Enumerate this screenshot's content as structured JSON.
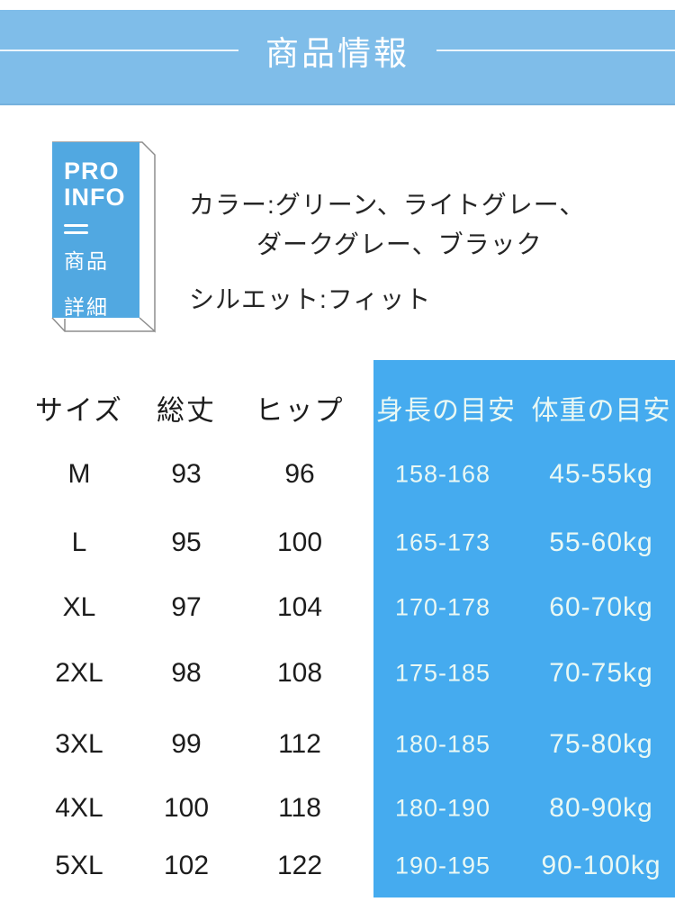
{
  "header": {
    "title": "商品情報"
  },
  "badge": {
    "pro": "PRO",
    "info": "INFO",
    "icon": "equals-lines-icon",
    "word1": "商品",
    "word2": "詳細"
  },
  "product_info": {
    "color_line1": "カラー:グリーン、ライトグレー、",
    "color_line2": "ダークグレー、ブラック",
    "silhouette": "シルエット:フィット"
  },
  "size_table": {
    "columns": [
      "サイズ",
      "総丈",
      "ヒップ",
      "身長の目安",
      "体重の目安"
    ],
    "rows": [
      [
        "M",
        "93",
        "96",
        "158-168",
        "45-55kg"
      ],
      [
        "L",
        "95",
        "100",
        "165-173",
        "55-60kg"
      ],
      [
        "XL",
        "97",
        "104",
        "170-178",
        "60-70kg"
      ],
      [
        "2XL",
        "98",
        "108",
        "175-185",
        "70-75kg"
      ],
      [
        "3XL",
        "99",
        "112",
        "180-185",
        "75-80kg"
      ],
      [
        "4XL",
        "100",
        "118",
        "180-190",
        "80-90kg"
      ],
      [
        "5XL",
        "102",
        "122",
        "190-195",
        "90-100kg"
      ]
    ]
  },
  "colors": {
    "banner_blue": "#7fbde9",
    "panel_blue": "#45abef",
    "badge_blue": "#51a8e1",
    "text_dark": "#1c1c1c",
    "text_on_blue": "#e9f8f4"
  }
}
